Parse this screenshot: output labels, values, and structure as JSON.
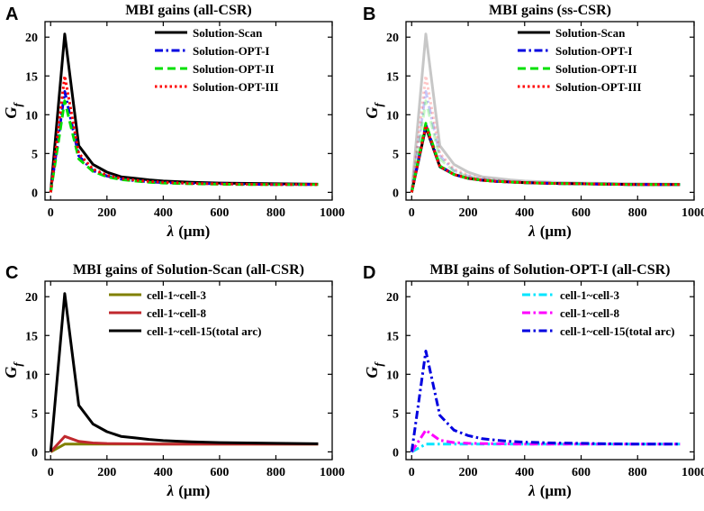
{
  "chart_data": [
    {
      "panel": "A",
      "type": "line",
      "title": "MBI gains (all-CSR)",
      "xlabel_symbol": "λ",
      "xlabel_unit": "(μm)",
      "ylabel_main": "G",
      "ylabel_sub": "f",
      "xlim": [
        -20,
        1000
      ],
      "ylim": [
        -1,
        22
      ],
      "xticks": [
        0,
        200,
        400,
        600,
        800,
        1000
      ],
      "yticks": [
        0,
        5,
        10,
        15,
        20
      ],
      "series": [
        {
          "name": "Solution-Scan",
          "color": "#000000",
          "dash": "solid",
          "opacity": 1,
          "x": [
            0,
            50,
            100,
            150,
            200,
            250,
            300,
            350,
            400,
            500,
            600,
            700,
            800,
            950
          ],
          "y": [
            0,
            20.4,
            6.0,
            3.6,
            2.6,
            2.0,
            1.8,
            1.6,
            1.45,
            1.3,
            1.2,
            1.15,
            1.1,
            1.05
          ]
        },
        {
          "name": "Solution-OPT-I",
          "color": "#0000e0",
          "dash": "dashdot",
          "opacity": 1,
          "x": [
            0,
            50,
            100,
            150,
            200,
            250,
            300,
            350,
            400,
            500,
            600,
            700,
            800,
            950
          ],
          "y": [
            0,
            13.0,
            4.7,
            2.8,
            2.1,
            1.7,
            1.5,
            1.35,
            1.25,
            1.15,
            1.1,
            1.05,
            1.0,
            1.0
          ]
        },
        {
          "name": "Solution-OPT-II",
          "color": "#00e000",
          "dash": "dashed",
          "opacity": 1,
          "x": [
            0,
            50,
            100,
            150,
            200,
            250,
            300,
            350,
            400,
            500,
            600,
            700,
            800,
            950
          ],
          "y": [
            0,
            11.8,
            4.3,
            2.7,
            2.0,
            1.65,
            1.45,
            1.3,
            1.2,
            1.1,
            1.05,
            1.0,
            1.0,
            1.0
          ]
        },
        {
          "name": "Solution-OPT-III",
          "color": "#ff0000",
          "dash": "dotted",
          "opacity": 1,
          "x": [
            0,
            50,
            100,
            150,
            200,
            250,
            300,
            350,
            400,
            500,
            600,
            700,
            800,
            950
          ],
          "y": [
            0,
            15.0,
            5.0,
            3.0,
            2.2,
            1.8,
            1.55,
            1.4,
            1.3,
            1.15,
            1.1,
            1.05,
            1.0,
            1.0
          ]
        }
      ],
      "legend": "top-right"
    },
    {
      "panel": "B",
      "type": "line",
      "title": "MBI gains (ss-CSR)",
      "xlabel_symbol": "λ",
      "xlabel_unit": "(μm)",
      "ylabel_main": "G",
      "ylabel_sub": "f",
      "xlim": [
        -20,
        1000
      ],
      "ylim": [
        -1,
        22
      ],
      "xticks": [
        0,
        200,
        400,
        600,
        800,
        1000
      ],
      "yticks": [
        0,
        5,
        10,
        15,
        20
      ],
      "background_series": [
        {
          "color": "#000000",
          "dash": "solid",
          "opacity": 0.22,
          "x": [
            0,
            50,
            100,
            150,
            200,
            250,
            300,
            350,
            400,
            500,
            600,
            700,
            800,
            950
          ],
          "y": [
            0,
            20.4,
            6.0,
            3.6,
            2.6,
            2.0,
            1.8,
            1.6,
            1.45,
            1.3,
            1.2,
            1.15,
            1.1,
            1.05
          ]
        },
        {
          "color": "#0000e0",
          "dash": "dashdot",
          "opacity": 0.22,
          "x": [
            0,
            50,
            100,
            150,
            200,
            250,
            300,
            350,
            400,
            500,
            600,
            700,
            800,
            950
          ],
          "y": [
            0,
            13.0,
            4.7,
            2.8,
            2.1,
            1.7,
            1.5,
            1.35,
            1.25,
            1.15,
            1.1,
            1.05,
            1.0,
            1.0
          ]
        },
        {
          "color": "#00e000",
          "dash": "dashed",
          "opacity": 0.22,
          "x": [
            0,
            50,
            100,
            150,
            200,
            250,
            300,
            350,
            400,
            500,
            600,
            700,
            800,
            950
          ],
          "y": [
            0,
            11.8,
            4.3,
            2.7,
            2.0,
            1.65,
            1.45,
            1.3,
            1.2,
            1.1,
            1.05,
            1.0,
            1.0,
            1.0
          ]
        },
        {
          "color": "#ff0000",
          "dash": "dotted",
          "opacity": 0.22,
          "x": [
            0,
            50,
            100,
            150,
            200,
            250,
            300,
            350,
            400,
            500,
            600,
            700,
            800,
            950
          ],
          "y": [
            0,
            15.0,
            5.0,
            3.0,
            2.2,
            1.8,
            1.55,
            1.4,
            1.3,
            1.15,
            1.1,
            1.05,
            1.0,
            1.0
          ]
        }
      ],
      "series": [
        {
          "name": "Solution-Scan",
          "color": "#000000",
          "dash": "solid",
          "opacity": 1,
          "x": [
            0,
            50,
            100,
            150,
            200,
            250,
            300,
            400,
            500,
            600,
            700,
            800,
            950
          ],
          "y": [
            0,
            8.4,
            3.3,
            2.3,
            1.8,
            1.55,
            1.4,
            1.25,
            1.15,
            1.1,
            1.05,
            1.0,
            1.0
          ]
        },
        {
          "name": "Solution-OPT-I",
          "color": "#0000e0",
          "dash": "dashdot",
          "opacity": 1,
          "x": [
            0,
            50,
            100,
            150,
            200,
            250,
            300,
            400,
            500,
            600,
            700,
            800,
            950
          ],
          "y": [
            0,
            8.7,
            3.4,
            2.3,
            1.8,
            1.55,
            1.4,
            1.25,
            1.15,
            1.1,
            1.05,
            1.0,
            1.0
          ]
        },
        {
          "name": "Solution-OPT-II",
          "color": "#00e000",
          "dash": "dashed",
          "opacity": 1,
          "x": [
            0,
            50,
            100,
            150,
            200,
            250,
            300,
            400,
            500,
            600,
            700,
            800,
            950
          ],
          "y": [
            0,
            8.9,
            3.4,
            2.3,
            1.8,
            1.55,
            1.4,
            1.25,
            1.15,
            1.1,
            1.05,
            1.0,
            1.0
          ]
        },
        {
          "name": "Solution-OPT-III",
          "color": "#ff0000",
          "dash": "dotted",
          "opacity": 1,
          "x": [
            0,
            50,
            100,
            150,
            200,
            250,
            300,
            400,
            500,
            600,
            700,
            800,
            950
          ],
          "y": [
            0,
            8.6,
            3.3,
            2.3,
            1.8,
            1.55,
            1.4,
            1.25,
            1.15,
            1.1,
            1.05,
            1.0,
            1.0
          ]
        }
      ],
      "legend": "top-right"
    },
    {
      "panel": "C",
      "type": "line",
      "title": "MBI gains of Solution-Scan (all-CSR)",
      "xlabel_symbol": "λ",
      "xlabel_unit": "(μm)",
      "ylabel_main": "G",
      "ylabel_sub": "f",
      "xlim": [
        -20,
        1000
      ],
      "ylim": [
        -1,
        22
      ],
      "xticks": [
        0,
        200,
        400,
        600,
        800,
        1000
      ],
      "yticks": [
        0,
        5,
        10,
        15,
        20
      ],
      "series": [
        {
          "name": "cell-1~cell-3",
          "color": "#808000",
          "dash": "solid",
          "opacity": 1,
          "x": [
            0,
            50,
            100,
            150,
            200,
            300,
            400,
            600,
            800,
            950
          ],
          "y": [
            0,
            1.0,
            1.0,
            1.0,
            1.0,
            1.0,
            1.0,
            1.0,
            1.0,
            1.0
          ]
        },
        {
          "name": "cell-1~cell-8",
          "color": "#c0282d",
          "dash": "solid",
          "opacity": 1,
          "x": [
            0,
            50,
            100,
            150,
            200,
            300,
            400,
            600,
            800,
            950
          ],
          "y": [
            0,
            2.0,
            1.35,
            1.15,
            1.08,
            1.03,
            1.0,
            1.0,
            1.0,
            1.0
          ]
        },
        {
          "name": "cell-1~cell-15(total arc)",
          "color": "#000000",
          "dash": "solid",
          "opacity": 1,
          "x": [
            0,
            50,
            100,
            150,
            200,
            250,
            300,
            350,
            400,
            500,
            600,
            700,
            800,
            950
          ],
          "y": [
            0,
            20.4,
            6.0,
            3.6,
            2.6,
            2.0,
            1.8,
            1.6,
            1.45,
            1.3,
            1.2,
            1.15,
            1.1,
            1.05
          ]
        }
      ],
      "legend": "top-right"
    },
    {
      "panel": "D",
      "type": "line",
      "title": "MBI gains of Solution-OPT-I (all-CSR)",
      "xlabel_symbol": "λ",
      "xlabel_unit": "(μm)",
      "ylabel_main": "G",
      "ylabel_sub": "f",
      "xlim": [
        -20,
        1000
      ],
      "ylim": [
        -1,
        22
      ],
      "xticks": [
        0,
        200,
        400,
        600,
        800,
        1000
      ],
      "yticks": [
        0,
        5,
        10,
        15,
        20
      ],
      "series": [
        {
          "name": "cell-1~cell-3",
          "color": "#00e5ff",
          "dash": "dashdot",
          "opacity": 1,
          "x": [
            0,
            50,
            100,
            150,
            200,
            300,
            400,
            600,
            800,
            950
          ],
          "y": [
            0,
            1.0,
            1.0,
            1.0,
            1.0,
            1.0,
            1.0,
            1.0,
            1.0,
            1.0
          ]
        },
        {
          "name": "cell-1~cell-8",
          "color": "#ff00ff",
          "dash": "dashdot",
          "opacity": 1,
          "x": [
            0,
            50,
            100,
            150,
            200,
            300,
            400,
            600,
            800,
            950
          ],
          "y": [
            0,
            2.8,
            1.5,
            1.2,
            1.1,
            1.05,
            1.0,
            1.0,
            1.0,
            1.0
          ]
        },
        {
          "name": "cell-1~cell-15(total arc)",
          "color": "#0000e0",
          "dash": "dashdot",
          "opacity": 1,
          "x": [
            0,
            50,
            100,
            150,
            200,
            250,
            300,
            350,
            400,
            500,
            600,
            700,
            800,
            950
          ],
          "y": [
            0,
            13.0,
            4.7,
            2.8,
            2.1,
            1.7,
            1.5,
            1.35,
            1.25,
            1.15,
            1.1,
            1.05,
            1.0,
            1.0
          ]
        }
      ],
      "legend": "top-right"
    }
  ]
}
